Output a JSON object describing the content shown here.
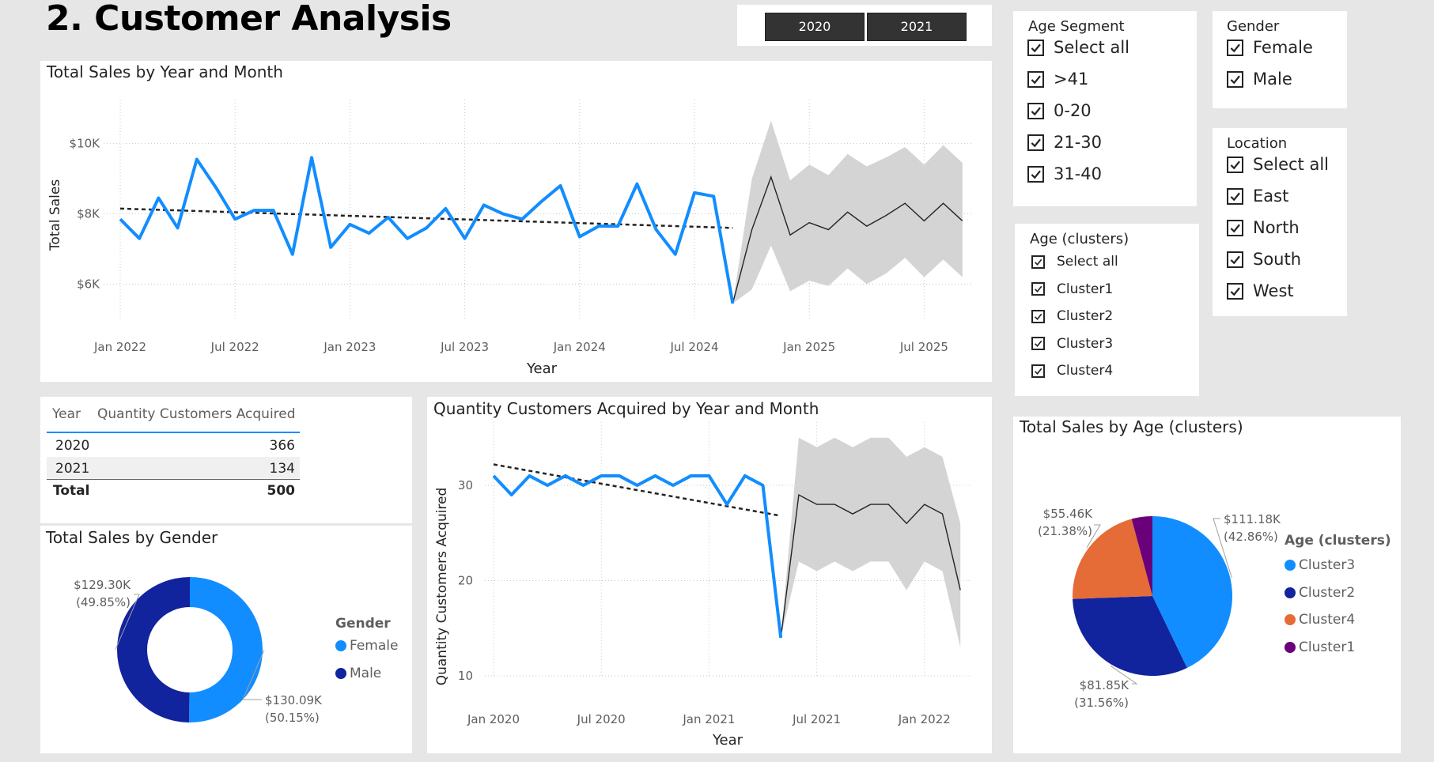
{
  "page": {
    "title": "2. Customer Analysis"
  },
  "year_buttons": [
    "2020",
    "2021"
  ],
  "slicers": {
    "age_segment": {
      "title": "Age Segment",
      "items": [
        "Select all",
        ">41",
        "0-20",
        "21-30",
        "31-40"
      ]
    },
    "gender": {
      "title": "Gender",
      "items": [
        "Female",
        "Male"
      ]
    },
    "location": {
      "title": "Location",
      "items": [
        "Select all",
        "East",
        "North",
        "South",
        "West"
      ]
    },
    "age_clusters": {
      "title": "Age (clusters)",
      "items": [
        "Select all",
        "Cluster1",
        "Cluster2",
        "Cluster3",
        "Cluster4"
      ]
    }
  },
  "table": {
    "headers": [
      "Year",
      "Quantity Customers Acquired"
    ],
    "rows": [
      {
        "year": "2020",
        "value": "366"
      },
      {
        "year": "2021",
        "value": "134"
      }
    ],
    "total_label": "Total",
    "total_value": "500"
  },
  "chart_data": [
    {
      "id": "sales-line",
      "type": "line",
      "title": "Total Sales by Year and Month",
      "xlabel": "Year",
      "ylabel": "Total Sales",
      "ylim": [
        5000,
        10800
      ],
      "yticks": [
        6000,
        8000,
        10000
      ],
      "ytick_labels": [
        "$6K",
        "$8K",
        "$10K"
      ],
      "xtick_labels": [
        "Jan 2022",
        "Jul 2022",
        "Jan 2023",
        "Jul 2023",
        "Jan 2024",
        "Jul 2024",
        "Jan 2025",
        "Jul 2025"
      ],
      "grid": true,
      "actual": [
        7850,
        7300,
        8450,
        7600,
        9550,
        8750,
        7850,
        8100,
        8100,
        6850,
        9600,
        7050,
        7700,
        7450,
        7900,
        7300,
        7600,
        8150,
        7300,
        8250,
        8000,
        7850,
        8350,
        8800,
        7350,
        7650,
        7650,
        8850,
        7550,
        6850,
        8600,
        8500,
        5450
      ],
      "forecast": [
        5450,
        7550,
        9050,
        7400,
        7750,
        7550,
        8050,
        7650,
        7950,
        8300,
        7800,
        8300,
        7800
      ],
      "forecast_upper": [
        5450,
        9000,
        10650,
        8950,
        9400,
        9100,
        9700,
        9350,
        9600,
        9900,
        9400,
        9950,
        9450
      ],
      "forecast_lower": [
        5450,
        5850,
        7100,
        5800,
        6100,
        5950,
        6450,
        6000,
        6300,
        6750,
        6200,
        6700,
        6200
      ],
      "trend": [
        8150,
        7600
      ],
      "colors": {
        "actual": "#118dff",
        "forecast": "#252423",
        "band": "#d4d4d4"
      }
    },
    {
      "id": "customers-line",
      "type": "line",
      "title": "Quantity Customers Acquired by Year and Month",
      "xlabel": "Year",
      "ylabel": "Quantity Customers Acquired",
      "ylim": [
        10,
        35
      ],
      "yticks": [
        10,
        20,
        30
      ],
      "ytick_labels": [
        "10",
        "20",
        "30"
      ],
      "xtick_labels": [
        "Jan 2020",
        "Jul 2020",
        "Jan 2021",
        "Jul 2021",
        "Jan 2022"
      ],
      "grid": true,
      "actual": [
        31,
        29,
        31,
        30,
        31,
        30,
        31,
        31,
        30,
        31,
        30,
        31,
        31,
        28,
        31,
        30,
        14
      ],
      "forecast": [
        14,
        29,
        28,
        28,
        27,
        28,
        28,
        26,
        28,
        27,
        19
      ],
      "forecast_upper": [
        14,
        35,
        34,
        35,
        34,
        35,
        35,
        33,
        34,
        33,
        26
      ],
      "forecast_lower": [
        14,
        22,
        21,
        22,
        21,
        22,
        22,
        19,
        22,
        21,
        13
      ],
      "trend": [
        32.2,
        26.8
      ],
      "colors": {
        "actual": "#118dff",
        "forecast": "#252423",
        "band": "#d4d4d4"
      }
    },
    {
      "id": "gender-donut",
      "type": "pie",
      "title": "Total Sales by Gender",
      "legend_title": "Gender",
      "legend_position": "right",
      "slices": [
        {
          "name": "Female",
          "value": 130.09,
          "label": "$130.09K",
          "pct": "(50.15%)",
          "color": "#118dff"
        },
        {
          "name": "Male",
          "value": 129.3,
          "label": "$129.30K",
          "pct": "(49.85%)",
          "color": "#12239e"
        }
      ]
    },
    {
      "id": "age-pie",
      "type": "pie",
      "title": "Total Sales by Age (clusters)",
      "legend_title": "Age (clusters)",
      "legend_position": "right",
      "slices": [
        {
          "name": "Cluster3",
          "value": 111.18,
          "label": "$111.18K",
          "pct": "(42.86%)",
          "color": "#118dff"
        },
        {
          "name": "Cluster2",
          "value": 81.85,
          "label": "$81.85K",
          "pct": "(31.56%)",
          "color": "#12239e"
        },
        {
          "name": "Cluster4",
          "value": 55.46,
          "label": "$55.46K",
          "pct": "(21.38%)",
          "color": "#e66c37"
        },
        {
          "name": "Cluster1",
          "value": 10.9,
          "label": "",
          "pct": "",
          "color": "#6b007b"
        }
      ]
    }
  ]
}
